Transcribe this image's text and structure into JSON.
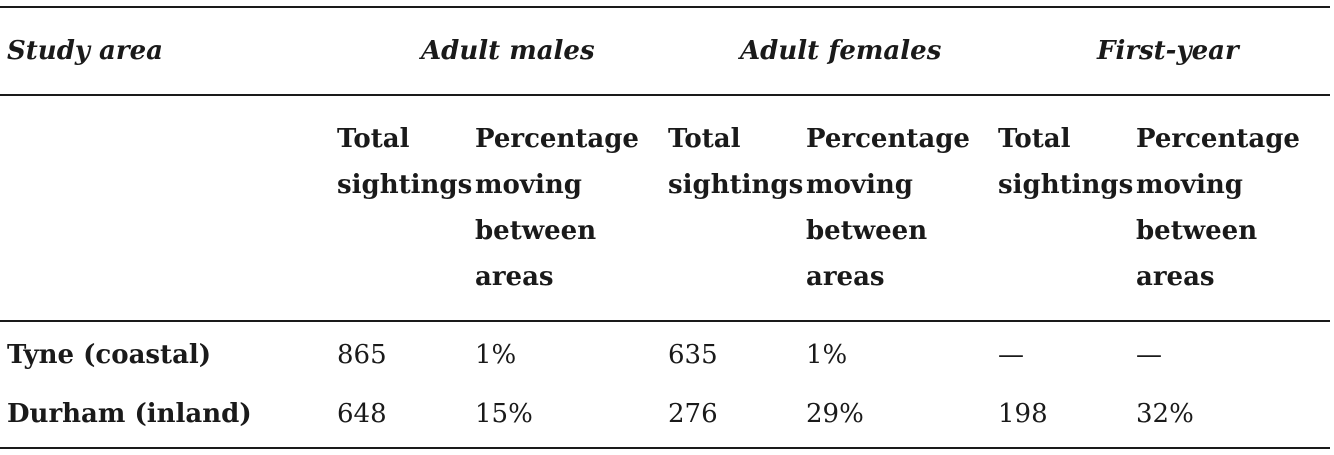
{
  "table": {
    "header": {
      "study_area": "Study area",
      "groups": [
        "Adult males",
        "Adult females",
        "First-year"
      ]
    },
    "subheaders": [
      [
        "Total",
        "sightings"
      ],
      [
        "Percentage",
        "moving",
        "between",
        "areas"
      ]
    ],
    "rows": [
      {
        "label": "Tyne (coastal)",
        "values": [
          "865",
          "1%",
          "635",
          "1%",
          "—",
          "—"
        ]
      },
      {
        "label": "Durham (inland)",
        "values": [
          "648",
          "15%",
          "276",
          "29%",
          "198",
          "32%"
        ]
      }
    ]
  }
}
